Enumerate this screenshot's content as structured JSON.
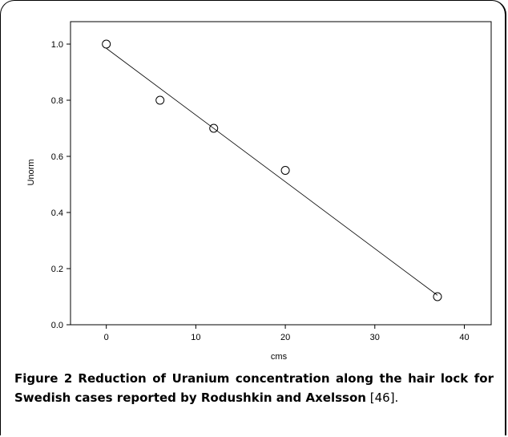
{
  "chart_data": {
    "type": "scatter",
    "xlabel": "cms",
    "ylabel": "Unorm",
    "xlim": [
      -4,
      43
    ],
    "ylim": [
      0,
      1.08
    ],
    "xticks": [
      0,
      10,
      20,
      30,
      40
    ],
    "yticks": [
      0.0,
      0.2,
      0.4,
      0.6,
      0.8,
      1.0
    ],
    "ytick_labels": [
      "0.0",
      "0.2",
      "0.4",
      "0.6",
      "0.8",
      "1.0"
    ],
    "xtick_labels": [
      "0",
      "10",
      "20",
      "30",
      "40"
    ],
    "points": [
      {
        "x": 0,
        "y": 1.0
      },
      {
        "x": 6,
        "y": 0.8
      },
      {
        "x": 12,
        "y": 0.7
      },
      {
        "x": 20,
        "y": 0.55
      },
      {
        "x": 37,
        "y": 0.1
      }
    ],
    "fit_line": {
      "x": [
        0,
        37
      ],
      "y": [
        0.985,
        0.105
      ]
    },
    "grid": false,
    "legend": "none"
  },
  "caption": {
    "label": "Figure 2",
    "text": "Reduction of Uranium concentration along the hair lock for Swedish cases reported by Rodushkin and Axelsson",
    "ref": "[46]."
  }
}
